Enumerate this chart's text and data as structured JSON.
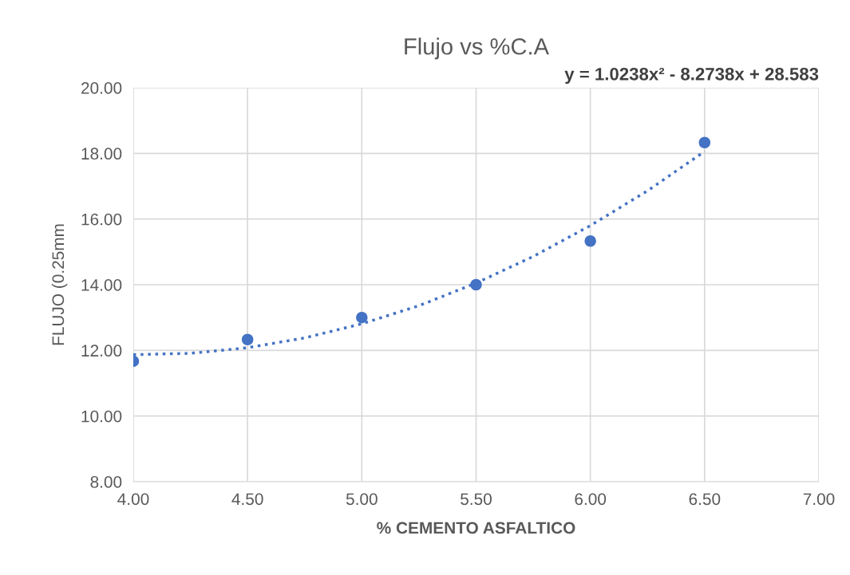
{
  "chart_data": {
    "type": "scatter",
    "title": "Flujo vs %C.A",
    "xlabel": "% CEMENTO ASFALTICO",
    "ylabel": "FLUJO (0.25mm",
    "annotations": [
      "y = 1.0238x² - 8.2738x + 28.583"
    ],
    "x": [
      4.0,
      4.5,
      5.0,
      5.5,
      6.0,
      6.5
    ],
    "series": [
      {
        "color": "#4472c4",
        "marker": "circle",
        "values": [
          11.67,
          12.33,
          13.0,
          14.0,
          15.33,
          18.33
        ]
      },
      {
        "type": "line",
        "color": "#4472c4",
        "line_style": "dotted",
        "marker": "none",
        "x": [
          4.0,
          4.25,
          4.5,
          4.75,
          5.0,
          5.25,
          5.5,
          5.75,
          6.0,
          6.25,
          6.5
        ],
        "values": [
          11.87,
          11.91,
          12.08,
          12.38,
          12.81,
          13.36,
          14.05,
          14.86,
          15.8,
          16.86,
          18.06
        ]
      }
    ],
    "xlim": [
      4.0,
      7.0
    ],
    "ylim": [
      8.0,
      20.0
    ],
    "xticks": [
      {
        "value": 4.0,
        "label": "4.00"
      },
      {
        "value": 4.5,
        "label": "4.50"
      },
      {
        "value": 5.0,
        "label": "5.00"
      },
      {
        "value": 5.5,
        "label": "5.50"
      },
      {
        "value": 6.0,
        "label": "6.00"
      },
      {
        "value": 6.5,
        "label": "6.50"
      },
      {
        "value": 7.0,
        "label": "7.00"
      }
    ],
    "yticks": [
      {
        "value": 8.0,
        "label": "8.00"
      },
      {
        "value": 10.0,
        "label": "10.00"
      },
      {
        "value": 12.0,
        "label": "12.00"
      },
      {
        "value": 14.0,
        "label": "14.00"
      },
      {
        "value": 16.0,
        "label": "16.00"
      },
      {
        "value": 18.0,
        "label": "18.00"
      },
      {
        "value": 20.0,
        "label": "20.00"
      }
    ],
    "grid": true
  }
}
